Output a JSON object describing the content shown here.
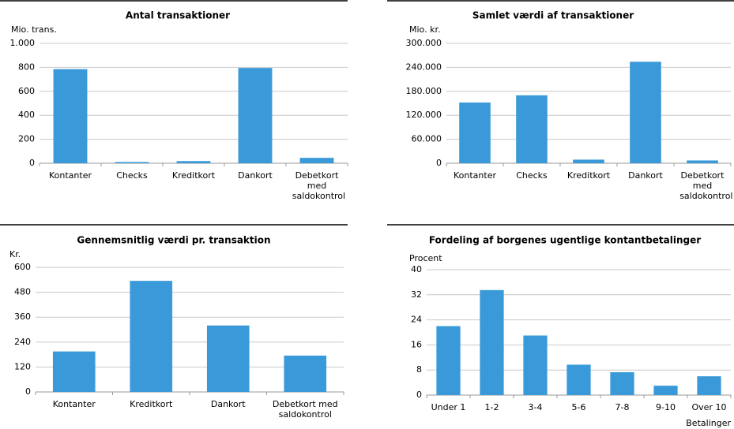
{
  "chart_data": [
    {
      "type": "bar",
      "title": "Antal transaktioner",
      "y_label": "Mio. trans.",
      "categories": [
        "Kontanter",
        "Checks",
        "Kreditkort",
        "Dankort",
        "Debetkort med saldokontrol"
      ],
      "values": [
        785,
        10,
        18,
        795,
        45
      ],
      "color": "#3a9ad9",
      "ylim": [
        0,
        1000
      ],
      "yticks": [
        0,
        200,
        400,
        600,
        800,
        {
          "value": 1000,
          "label": "1.000"
        }
      ],
      "grid": true
    },
    {
      "type": "bar",
      "title": "Samlet værdi af transaktioner",
      "y_label": "Mio. kr.",
      "categories": [
        "Kontanter",
        "Checks",
        "Kreditkort",
        "Dankort",
        "Debetkort med saldokontrol"
      ],
      "values": [
        152000,
        170000,
        9000,
        254000,
        7000
      ],
      "color": "#3a9ad9",
      "ylim": [
        0,
        300000
      ],
      "yticks": [
        0,
        {
          "value": 60000,
          "label": "60.000"
        },
        {
          "value": 120000,
          "label": "120.000"
        },
        {
          "value": 180000,
          "label": "180.000"
        },
        {
          "value": 240000,
          "label": "240.000"
        },
        {
          "value": 300000,
          "label": "300.000"
        }
      ],
      "grid": true
    },
    {
      "type": "bar",
      "title": "Gennemsnitlig værdi pr. transaktion",
      "y_label": "Kr.",
      "categories": [
        "Kontanter",
        "Kreditkort",
        "Dankort",
        "Debetkort med saldokontrol"
      ],
      "values": [
        195,
        535,
        320,
        175
      ],
      "color": "#3a9ad9",
      "ylim": [
        0,
        600
      ],
      "yticks": [
        0,
        120,
        240,
        360,
        480,
        600
      ],
      "grid": true
    },
    {
      "type": "bar",
      "title": "Fordeling af borgenes ugentlige kontantbetalinger",
      "y_label": "Procent",
      "x_label": "Betalinger",
      "categories": [
        "Under 1",
        "1-2",
        "3-4",
        "5-6",
        "7-8",
        "9-10",
        "Over 10"
      ],
      "values": [
        22,
        33.5,
        19,
        9.7,
        7.3,
        3,
        6
      ],
      "color": "#3a9ad9",
      "ylim": [
        0,
        40
      ],
      "yticks": [
        0,
        8,
        16,
        24,
        32,
        40
      ],
      "grid": true
    }
  ]
}
